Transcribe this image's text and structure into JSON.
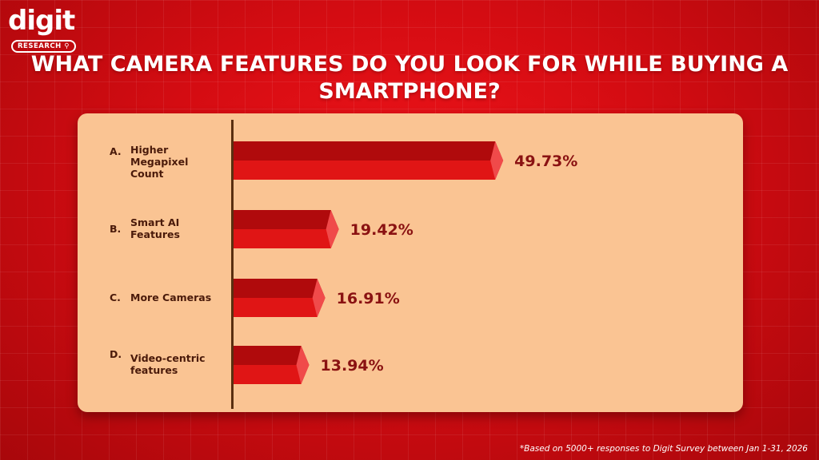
{
  "brand": {
    "name": "digit",
    "badge": "RESEARCH",
    "colors": {
      "background": "#e0101a",
      "panel": "#fac493",
      "bar": "#e01515",
      "bar_top": "#b00a0c",
      "value_text": "#8a1212"
    }
  },
  "footnote": "*Based on 5000+ responses to Digit Survey between Jan 1-31, 2026",
  "chart_data": {
    "type": "bar",
    "orientation": "horizontal",
    "title": "WHAT CAMERA FEATURES DO YOU LOOK FOR WHILE BUYING A SMARTPHONE?",
    "categories": [
      {
        "letter": "A.",
        "text": "Higher Megapixel Count"
      },
      {
        "letter": "B.",
        "text": "Smart AI Features"
      },
      {
        "letter": "C.",
        "text": "More Cameras"
      },
      {
        "letter": "D.",
        "text": "Video-centric features"
      }
    ],
    "values": [
      49.73,
      19.42,
      16.91,
      13.94
    ],
    "value_labels": [
      "49.73%",
      "19.42%",
      "16.91%",
      "13.94%"
    ],
    "unit": "%",
    "xlim": [
      0,
      100
    ],
    "grid": false,
    "legend": "none"
  }
}
